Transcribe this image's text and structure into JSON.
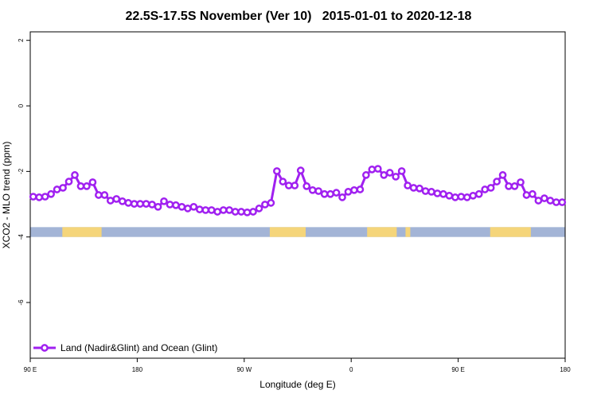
{
  "chart_data": {
    "type": "line",
    "title": "22.5S-17.5S November (Ver 10)   2015-01-01 to 2020-12-18",
    "x_label": "Longitude (deg E)",
    "y_label": "XCO2 - MLO trend (ppm)",
    "xlim": [
      90,
      540
    ],
    "ylim": [
      -7.7,
      2.26
    ],
    "xticks": [
      {
        "value": 90,
        "label": "90 E"
      },
      180,
      {
        "value": 270,
        "label": "90 W"
      },
      {
        "value": 360,
        "label": "0"
      },
      {
        "value": 450,
        "label": "90 E"
      },
      180
    ],
    "yticks": [
      2,
      0,
      -2,
      -4,
      -6
    ],
    "legend": "bottom-left",
    "x": [
      92.5,
      97.5,
      102.5,
      107.5,
      112.5,
      117.5,
      122.5,
      127.5,
      132.5,
      137.5,
      142.5,
      147.5,
      152.5,
      157.5,
      162.5,
      167.5,
      172.5,
      177.5,
      182.5,
      187.5,
      192.5,
      197.5,
      202.5,
      207.5,
      212.5,
      217.5,
      222.5,
      227.5,
      232.5,
      237.5,
      242.5,
      247.5,
      252.5,
      257.5,
      262.5,
      267.5,
      272.5,
      277.5,
      282.5,
      287.5,
      292.5,
      297.5,
      302.5,
      307.5,
      312.5,
      317.5,
      322.5,
      327.5,
      332.5,
      337.5,
      342.5,
      347.5,
      352.5,
      357.5,
      362.5,
      367.5,
      372.5,
      377.5,
      382.5,
      387.5,
      392.5,
      397.5,
      402.5,
      407.5,
      412.5,
      417.5,
      422.5,
      427.5,
      432.5,
      437.5,
      442.5,
      447.5,
      452.5,
      457.5,
      462.5,
      467.5,
      472.5,
      477.5,
      482.5,
      487.5,
      492.5,
      497.5,
      502.5,
      507.5,
      512.5,
      517.5,
      522.5,
      527.5,
      532.5,
      537.5
    ],
    "series": [
      {
        "name": "Land (Nadir&Glint) and Ocean (Glint)",
        "color": "#a020f0",
        "values": [
          -2.77,
          -2.79,
          -2.77,
          -2.69,
          -2.55,
          -2.5,
          -2.31,
          -2.11,
          -2.45,
          -2.45,
          -2.33,
          -2.72,
          -2.72,
          -2.89,
          -2.84,
          -2.91,
          -2.96,
          -2.99,
          -2.99,
          -2.99,
          -3.01,
          -3.08,
          -2.91,
          -3.01,
          -3.03,
          -3.08,
          -3.13,
          -3.08,
          -3.16,
          -3.18,
          -3.18,
          -3.23,
          -3.18,
          -3.18,
          -3.23,
          -3.23,
          -3.25,
          -3.23,
          -3.13,
          -3.01,
          -2.96,
          -1.99,
          -2.31,
          -2.43,
          -2.43,
          -1.97,
          -2.45,
          -2.57,
          -2.6,
          -2.69,
          -2.69,
          -2.65,
          -2.79,
          -2.62,
          -2.57,
          -2.55,
          -2.11,
          -1.94,
          -1.92,
          -2.11,
          -2.04,
          -2.16,
          -1.99,
          -2.43,
          -2.5,
          -2.52,
          -2.6,
          -2.62,
          -2.67,
          -2.69,
          -2.74,
          -2.79,
          -2.77,
          -2.79,
          -2.74,
          -2.69,
          -2.55,
          -2.5,
          -2.31,
          -2.11,
          -2.45,
          -2.45,
          -2.33,
          -2.72,
          -2.69,
          -2.89,
          -2.82,
          -2.89,
          -2.94,
          -2.94
        ]
      }
    ],
    "surface_band": {
      "ylim": [
        -4.0,
        -3.7
      ],
      "ocean_color": "#a3b4d6",
      "land_color": "#f5d57a",
      "land_ranges": [
        [
          117,
          150
        ],
        [
          291.5,
          321.7
        ],
        [
          373.4,
          398.3
        ],
        [
          405.7,
          409.7
        ],
        [
          476.9,
          511.1
        ]
      ]
    }
  }
}
